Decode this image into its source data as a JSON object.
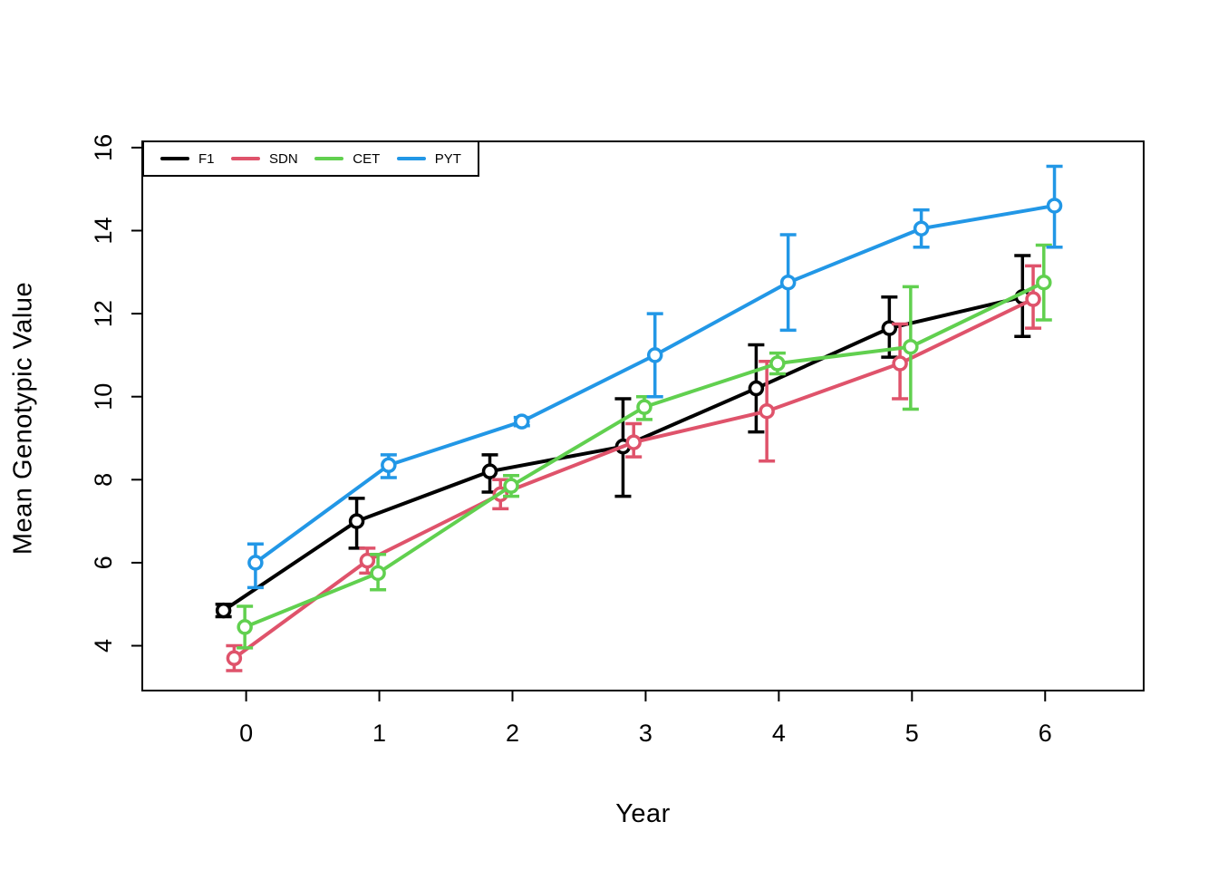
{
  "chart_data": {
    "type": "line",
    "title": "",
    "xlabel": "Year",
    "ylabel": "Mean Genotypic Value",
    "x_ticks": [
      0,
      1,
      2,
      3,
      4,
      5,
      6
    ],
    "y_ticks": [
      4,
      6,
      8,
      10,
      12,
      14,
      16
    ],
    "xlim": [
      -0.78,
      6.74
    ],
    "ylim": [
      2.92,
      16.15
    ],
    "grid": false,
    "legend_position": "top-left-inside",
    "error_bars": true,
    "marker": "open-circle",
    "series": [
      {
        "name": "F1",
        "color": "#000000",
        "x_offset": -0.17,
        "x": [
          0,
          1,
          2,
          3,
          4,
          5,
          6
        ],
        "values": [
          4.85,
          7.0,
          8.2,
          8.8,
          10.2,
          11.65,
          12.4
        ],
        "lower": [
          4.7,
          6.35,
          7.7,
          7.6,
          9.15,
          10.95,
          11.45
        ],
        "upper": [
          5.0,
          7.55,
          8.6,
          9.95,
          11.25,
          12.4,
          13.4
        ]
      },
      {
        "name": "SDN",
        "color": "#DF536B",
        "x_offset": -0.09,
        "x": [
          0,
          1,
          2,
          3,
          4,
          5,
          6
        ],
        "values": [
          3.7,
          6.05,
          7.65,
          8.9,
          9.65,
          10.8,
          12.35
        ],
        "lower": [
          3.4,
          5.75,
          7.3,
          8.55,
          8.45,
          9.95,
          11.65
        ],
        "upper": [
          4.0,
          6.35,
          8.0,
          9.35,
          10.85,
          11.75,
          13.15
        ]
      },
      {
        "name": "CET",
        "color": "#61D04F",
        "x_offset": -0.01,
        "x": [
          0,
          1,
          2,
          3,
          4,
          5,
          6
        ],
        "values": [
          4.45,
          5.75,
          7.85,
          9.75,
          10.8,
          11.2,
          12.75
        ],
        "lower": [
          3.95,
          5.35,
          7.6,
          9.45,
          10.55,
          9.7,
          11.85
        ],
        "upper": [
          4.95,
          6.2,
          8.1,
          10.0,
          11.05,
          12.65,
          13.65
        ]
      },
      {
        "name": "PYT",
        "color": "#2297E6",
        "x_offset": 0.07,
        "x": [
          0,
          1,
          2,
          3,
          4,
          5,
          6
        ],
        "values": [
          6.0,
          8.35,
          9.4,
          11.0,
          12.75,
          14.05,
          14.6
        ],
        "lower": [
          5.4,
          8.05,
          9.3,
          10.0,
          11.6,
          13.6,
          13.6
        ],
        "upper": [
          6.45,
          8.6,
          9.5,
          12.0,
          13.9,
          14.5,
          15.55
        ]
      }
    ]
  }
}
